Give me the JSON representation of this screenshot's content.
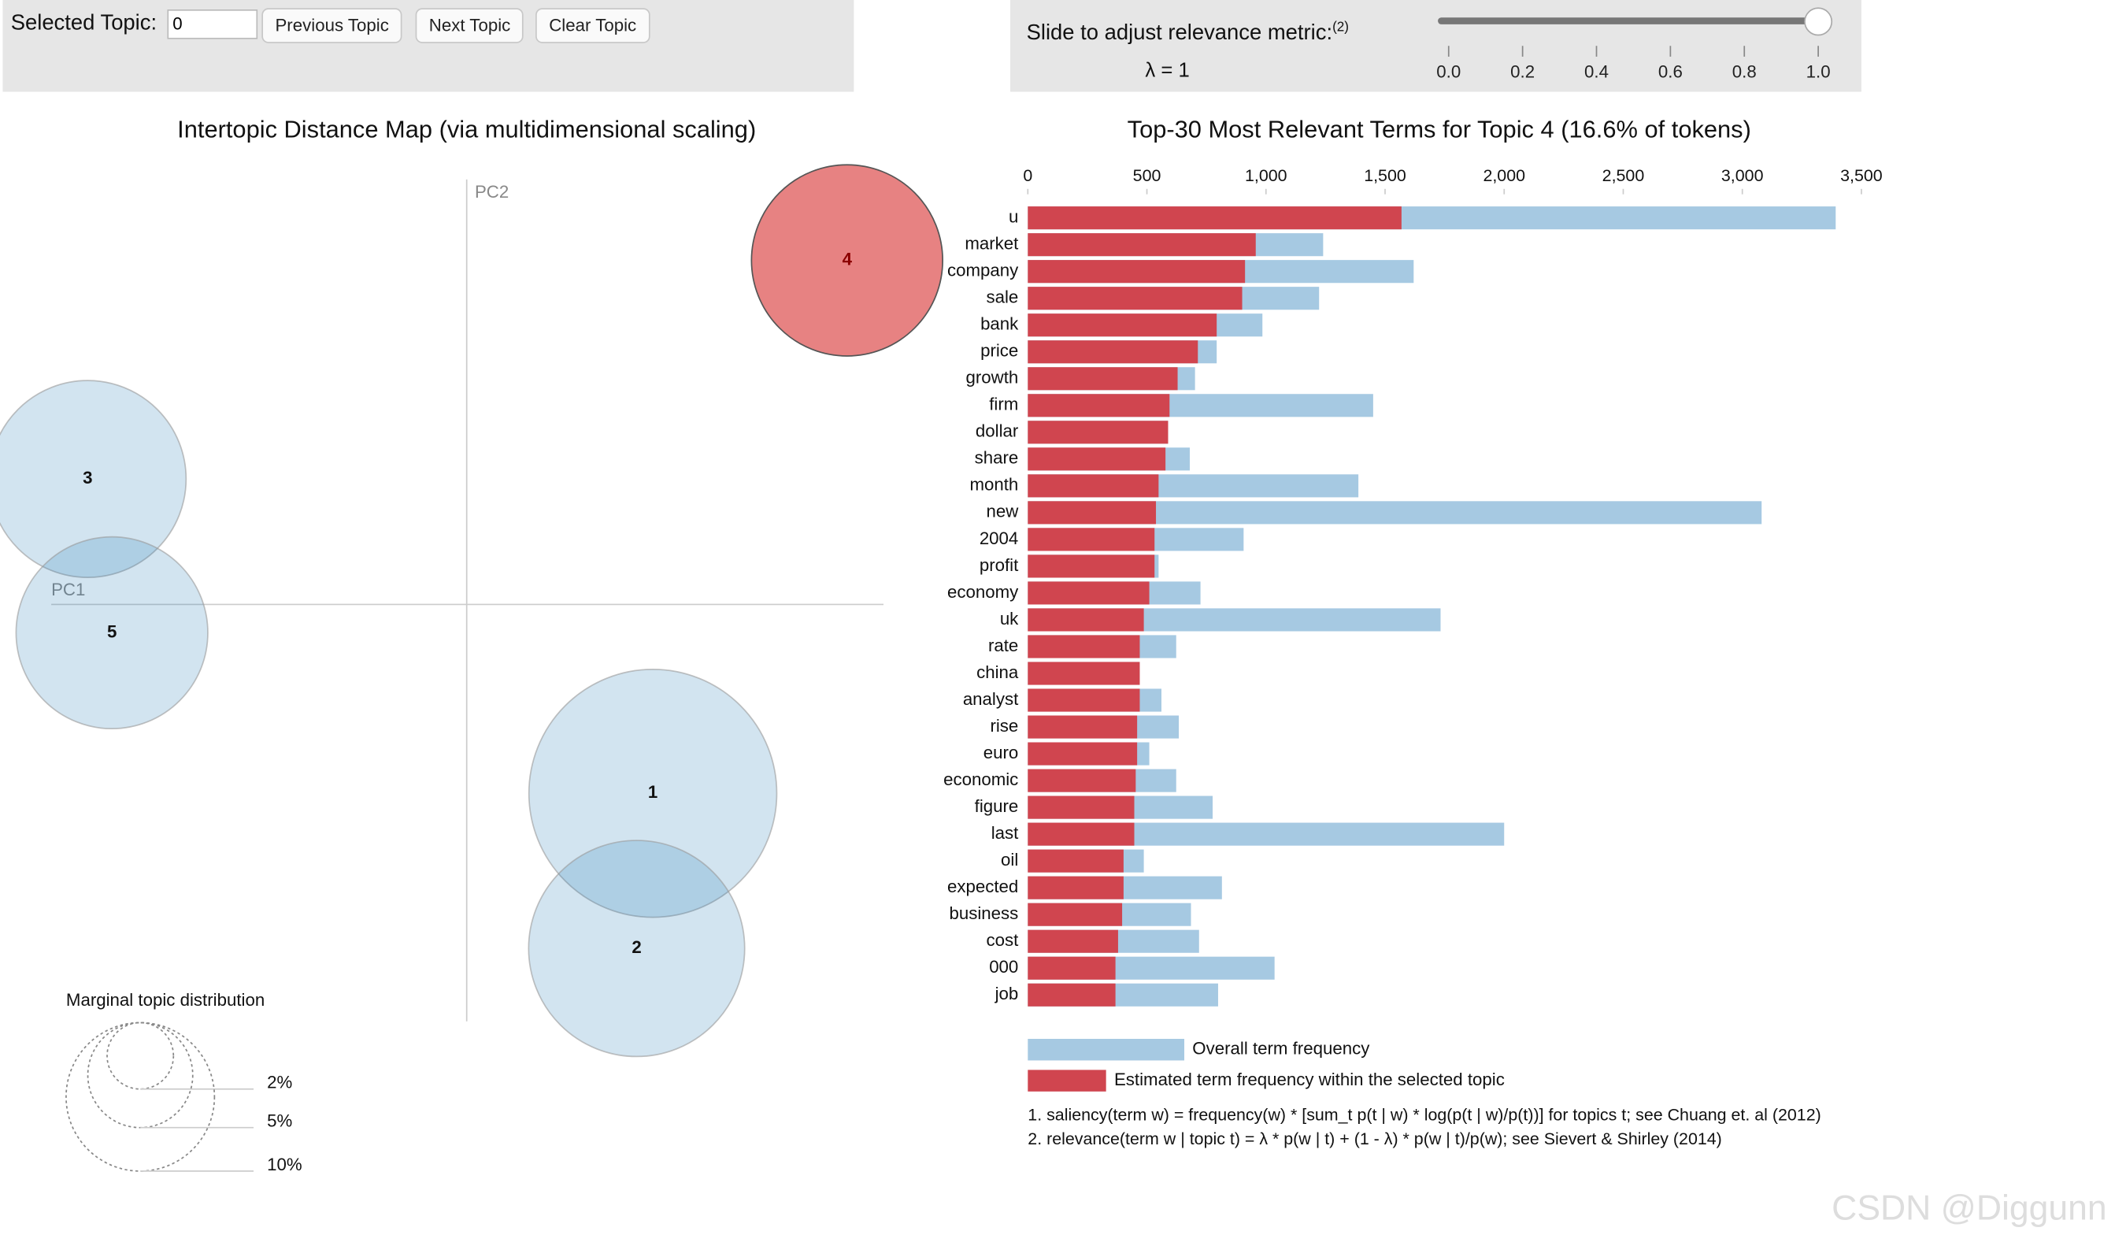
{
  "controls": {
    "selected_topic_label": "Selected Topic:",
    "selected_topic_value": "0",
    "buttons": [
      "Previous Topic",
      "Next Topic",
      "Clear Topic"
    ]
  },
  "slider": {
    "label": "Slide to adjust relevance metric:",
    "label_note": "(2)",
    "lambda_text": "λ = 1",
    "value": 1,
    "lim": [
      0,
      1
    ],
    "ticks": [
      {
        "value": 0,
        "label": "0.0"
      },
      {
        "value": 0.2,
        "label": "0.2"
      },
      {
        "value": 0.4,
        "label": "0.4"
      },
      {
        "value": 0.6,
        "label": "0.6"
      },
      {
        "value": 0.8,
        "label": "0.8"
      },
      {
        "value": 1,
        "label": "1.0"
      }
    ]
  },
  "chart_data": [
    {
      "type": "bubble",
      "title": "Intertopic Distance Map (via multidimensional scaling)",
      "xlabel": "PC1",
      "ylabel": "PC2",
      "labels": [
        "1",
        "2",
        "3",
        "4",
        "5"
      ],
      "x": [
        1.38,
        1.26,
        -2.81,
        2.82,
        -2.63
      ],
      "y": [
        -1.4,
        -2.55,
        0.93,
        2.55,
        -0.21
      ],
      "sizes": [
        27.9,
        21.2,
        17.6,
        16.6,
        16.7
      ],
      "colors": [
        "#1f77b4",
        "#1f77b4",
        "#1f77b4",
        "#d62728",
        "#1f77b4"
      ],
      "xlim": [
        -3.08,
        3.09
      ],
      "ylim": [
        -3.09,
        3.15
      ],
      "size_legend": {
        "title": "Marginal topic distribution",
        "sizes": [
          {
            "value": 2,
            "label": "2%"
          },
          {
            "value": 5,
            "label": "5%"
          },
          {
            "value": 10,
            "label": "10%"
          }
        ]
      }
    },
    {
      "type": "hbar",
      "title": "Top-30 Most Relevant Terms for Topic 4 (16.6% of tokens)",
      "categories": [
        "u",
        "market",
        "company",
        "sale",
        "bank",
        "price",
        "growth",
        "firm",
        "dollar",
        "share",
        "month",
        "new",
        "2004",
        "profit",
        "economy",
        "uk",
        "rate",
        "china",
        "analyst",
        "rise",
        "euro",
        "economic",
        "figure",
        "last",
        "oil",
        "expected",
        "business",
        "cost",
        "000",
        "job"
      ],
      "series": [
        {
          "name": "Overall term frequency",
          "color": "#a6c9e2",
          "values": [
            3392,
            1240,
            1620,
            1223,
            985,
            793,
            702,
            1450,
            589,
            680,
            1388,
            3081,
            906,
            549,
            725,
            1733,
            623,
            470,
            561,
            634,
            510,
            623,
            776,
            2000,
            487,
            815,
            685,
            719,
            1036,
            799
          ]
        },
        {
          "name": "Estimated term frequency within the selected topic",
          "color": "#d0454f",
          "values": [
            1569,
            957,
            912,
            900,
            793,
            714,
            629,
            595,
            589,
            578,
            549,
            538,
            532,
            532,
            510,
            487,
            470,
            470,
            470,
            459,
            459,
            453,
            447,
            447,
            402,
            402,
            396,
            379,
            368,
            368
          ]
        }
      ],
      "xlim": [
        0,
        3500
      ],
      "xticks": [
        0,
        500,
        {
          "value": 1000,
          "label": "1,000"
        },
        {
          "value": 1500,
          "label": "1,500"
        },
        {
          "value": 2000,
          "label": "2,000"
        },
        {
          "value": 2500,
          "label": "2,500"
        },
        {
          "value": 3000,
          "label": "3,000"
        },
        {
          "value": 3500,
          "label": "3,500"
        }
      ]
    }
  ],
  "footnotes": [
    "1. saliency(term w) = frequency(w) * [sum_t p(t | w) * log(p(t | w)/p(t))] for topics t; see Chuang et. al (2012)",
    "2. relevance(term w | topic t) = λ * p(w | t) + (1 - λ) * p(w | t)/p(w); see Sievert & Shirley (2014)"
  ],
  "watermark": "CSDN @Diggunn"
}
